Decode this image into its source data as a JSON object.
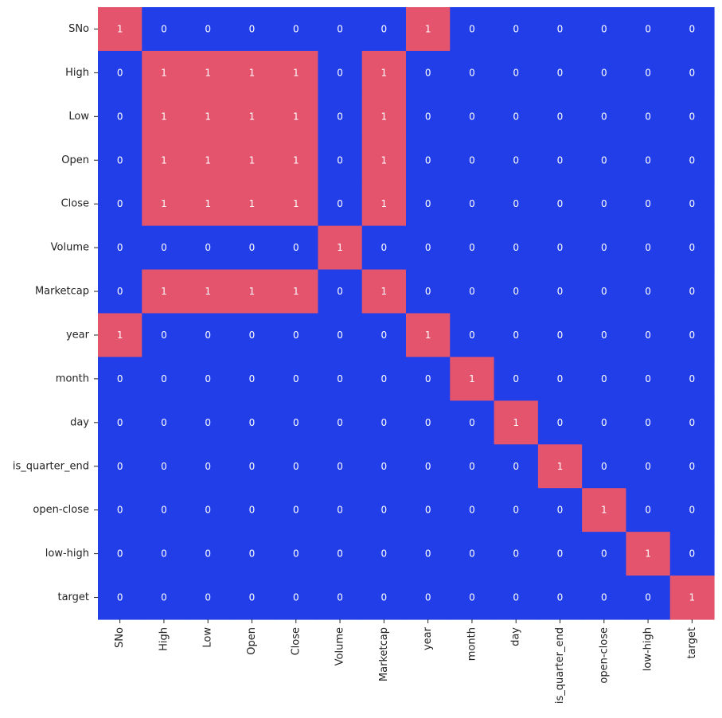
{
  "chart_data": {
    "type": "heatmap",
    "title": "",
    "xlabel": "",
    "ylabel": "",
    "colorbar": false,
    "value_range": [
      0,
      1
    ],
    "colors": {
      "low": "#213ee8",
      "high": "#e4546d",
      "annotation": "#ffffff"
    },
    "labels": [
      "SNo",
      "High",
      "Low",
      "Open",
      "Close",
      "Volume",
      "Marketcap",
      "year",
      "month",
      "day",
      "is_quarter_end",
      "open-close",
      "low-high",
      "target"
    ],
    "matrix": [
      [
        1,
        0,
        0,
        0,
        0,
        0,
        0,
        1,
        0,
        0,
        0,
        0,
        0,
        0
      ],
      [
        0,
        1,
        1,
        1,
        1,
        0,
        1,
        0,
        0,
        0,
        0,
        0,
        0,
        0
      ],
      [
        0,
        1,
        1,
        1,
        1,
        0,
        1,
        0,
        0,
        0,
        0,
        0,
        0,
        0
      ],
      [
        0,
        1,
        1,
        1,
        1,
        0,
        1,
        0,
        0,
        0,
        0,
        0,
        0,
        0
      ],
      [
        0,
        1,
        1,
        1,
        1,
        0,
        1,
        0,
        0,
        0,
        0,
        0,
        0,
        0
      ],
      [
        0,
        0,
        0,
        0,
        0,
        1,
        0,
        0,
        0,
        0,
        0,
        0,
        0,
        0
      ],
      [
        0,
        1,
        1,
        1,
        1,
        0,
        1,
        0,
        0,
        0,
        0,
        0,
        0,
        0
      ],
      [
        1,
        0,
        0,
        0,
        0,
        0,
        0,
        1,
        0,
        0,
        0,
        0,
        0,
        0
      ],
      [
        0,
        0,
        0,
        0,
        0,
        0,
        0,
        0,
        1,
        0,
        0,
        0,
        0,
        0
      ],
      [
        0,
        0,
        0,
        0,
        0,
        0,
        0,
        0,
        0,
        1,
        0,
        0,
        0,
        0
      ],
      [
        0,
        0,
        0,
        0,
        0,
        0,
        0,
        0,
        0,
        0,
        1,
        0,
        0,
        0
      ],
      [
        0,
        0,
        0,
        0,
        0,
        0,
        0,
        0,
        0,
        0,
        0,
        1,
        0,
        0
      ],
      [
        0,
        0,
        0,
        0,
        0,
        0,
        0,
        0,
        0,
        0,
        0,
        0,
        1,
        0
      ],
      [
        0,
        0,
        0,
        0,
        0,
        0,
        0,
        0,
        0,
        0,
        0,
        0,
        0,
        1
      ]
    ]
  }
}
